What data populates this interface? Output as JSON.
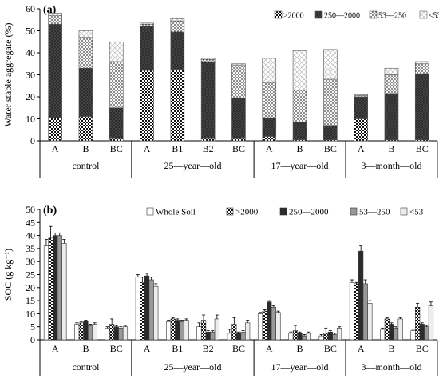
{
  "chart_data": [
    {
      "type": "bar",
      "stacked": true,
      "panel_label": "(a)",
      "ylabel": "Water stable aggregate (%)",
      "ylim": [
        0,
        60
      ],
      "yticks": [
        "0",
        "10",
        "20",
        "30",
        "40",
        "50",
        "60"
      ],
      "legend_position": "top-right",
      "categories": [
        "A",
        "B",
        "BC",
        "A",
        "B1",
        "B2",
        "BC",
        "A",
        "B",
        "BC",
        "A",
        "B",
        "BC"
      ],
      "groups": [
        {
          "label": "control",
          "size": 3
        },
        {
          "label": "25—year—old",
          "size": 4
        },
        {
          "label": "17—year—old",
          "size": 3
        },
        {
          "label": "3—month—old",
          "size": 3
        }
      ],
      "series": [
        {
          "name": ">2000",
          "values": [
            10.5,
            11,
            1,
            32,
            32.5,
            1,
            1,
            2,
            0.5,
            0.5,
            10,
            0.5,
            0.5
          ]
        },
        {
          "name": "250—2000",
          "values": [
            42.5,
            22,
            14,
            20,
            17,
            35,
            18.5,
            8.5,
            8,
            6.5,
            10,
            21,
            30
          ]
        },
        {
          "name": "53—250",
          "values": [
            4,
            14,
            21,
            1,
            5,
            1,
            15,
            16,
            14.5,
            21,
            0.5,
            8.5,
            4.5
          ]
        },
        {
          "name": "<53",
          "values": [
            1,
            3,
            9,
            0.5,
            1,
            0.5,
            0.5,
            11,
            18,
            13.5,
            0.5,
            3,
            1
          ]
        }
      ]
    },
    {
      "type": "bar",
      "panel_label": "(b)",
      "ylabel": "SOC (g kg⁻¹)",
      "ylim": [
        0,
        50
      ],
      "yticks": [
        "0",
        "5",
        "10",
        "15",
        "20",
        "25",
        "30",
        "35",
        "40",
        "45",
        "50"
      ],
      "legend_position": "top",
      "categories": [
        "A",
        "B",
        "BC",
        "A",
        "B1",
        "B2",
        "BC",
        "A",
        "B",
        "BC",
        "A",
        "B",
        "BC"
      ],
      "groups": [
        {
          "label": "control",
          "size": 3
        },
        {
          "label": "25—year—old",
          "size": 4
        },
        {
          "label": "17—year—old",
          "size": 3
        },
        {
          "label": "3—month—old",
          "size": 3
        }
      ],
      "series": [
        {
          "name": "Whole Soil",
          "values": [
            36,
            6,
            4.5,
            24,
            7,
            5,
            2.5,
            10,
            2.5,
            1.5,
            22,
            4,
            3.5
          ]
        },
        {
          "name": ">2000",
          "values": [
            39,
            6.5,
            6,
            22,
            8,
            7.5,
            6,
            11,
            3.5,
            2.5,
            21.5,
            8,
            12.5
          ]
        },
        {
          "name": "250—2000",
          "values": [
            40,
            7,
            5,
            24.5,
            7.5,
            3,
            2.5,
            14.5,
            2.5,
            3,
            34,
            6,
            6
          ]
        },
        {
          "name": "53—250",
          "values": [
            40,
            5.5,
            4.5,
            23,
            7,
            3,
            3,
            12.5,
            1.5,
            2,
            21.5,
            4.5,
            5
          ]
        },
        {
          "name": "<53",
          "values": [
            37,
            6,
            5,
            20.5,
            7.5,
            8,
            6.5,
            10.5,
            2.5,
            4.5,
            14,
            8,
            13
          ]
        }
      ],
      "errors": [
        [
          2.5,
          0.5,
          0.5,
          1,
          0.5,
          1.5,
          1.5,
          0.5,
          0.5,
          0.5,
          1,
          0.5,
          0.5
        ],
        [
          4.5,
          0.5,
          2,
          2,
          0.5,
          2,
          2.5,
          0.5,
          2,
          2,
          0.5,
          0.5,
          1.5
        ],
        [
          1,
          0.5,
          0.5,
          1,
          0.5,
          0.5,
          0.5,
          0.5,
          0.5,
          0.5,
          2,
          0.5,
          0.5
        ],
        [
          1,
          0.5,
          0.5,
          1,
          0.5,
          0.5,
          0.5,
          0.5,
          0.5,
          0.5,
          1.5,
          0.5,
          0.5
        ],
        [
          1.5,
          0.5,
          0.5,
          1,
          0.5,
          1.5,
          1,
          0.5,
          0.5,
          0.5,
          1,
          0.5,
          1.5
        ]
      ]
    }
  ]
}
